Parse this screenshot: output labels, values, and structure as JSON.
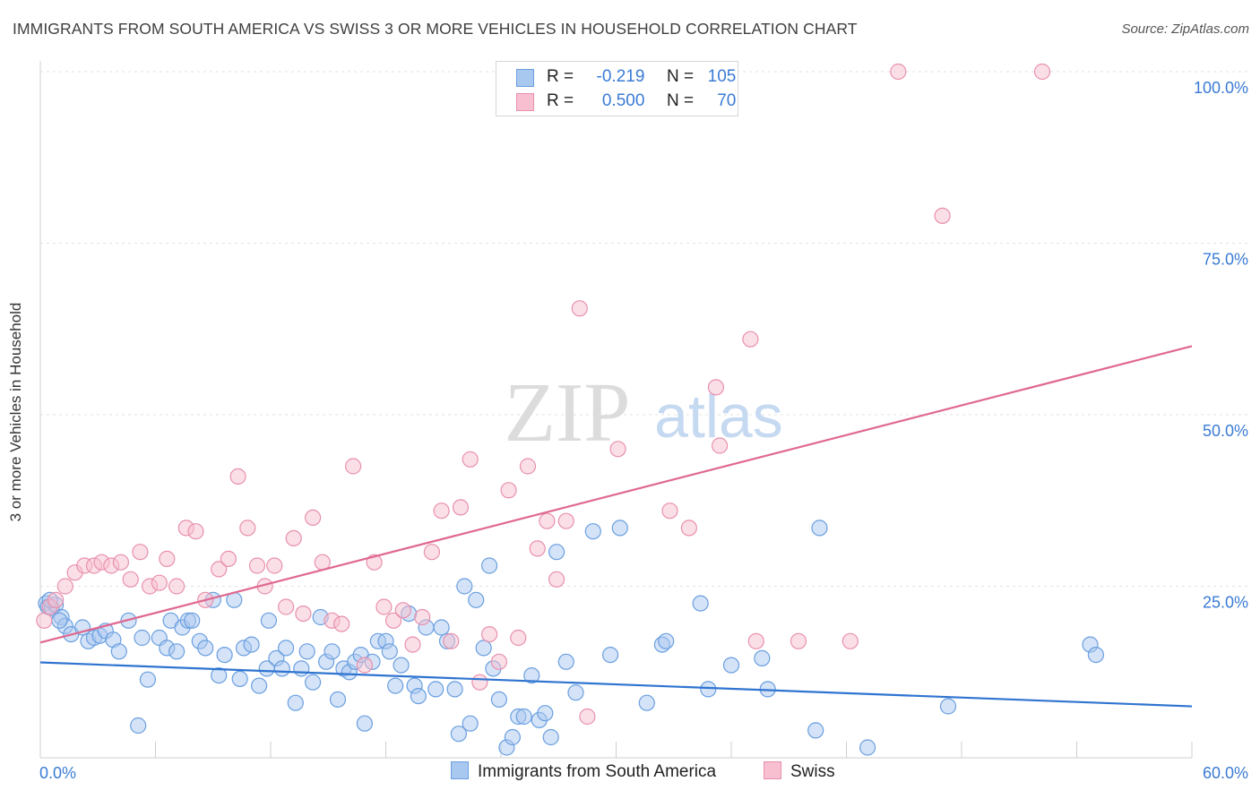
{
  "title": "IMMIGRANTS FROM SOUTH AMERICA VS SWISS 3 OR MORE VEHICLES IN HOUSEHOLD CORRELATION CHART",
  "source": "Source: ZipAtlas.com",
  "watermark": {
    "zip": "ZIP",
    "atlas": "atlas"
  },
  "legend": {
    "rows": [
      {
        "r_label": "R =",
        "r_value": "-0.219",
        "n_label": "N =",
        "n_value": "105",
        "color": "#a9c8f0",
        "border": "#6a9fe0"
      },
      {
        "r_label": "R =",
        "r_value": "0.500",
        "n_label": "N =",
        "n_value": "70",
        "color": "#f7bfd0",
        "border": "#e890ad"
      }
    ]
  },
  "bottom_legend": [
    {
      "label": "Immigrants from South America",
      "color": "#a9c8f0",
      "border": "#6a9fe0"
    },
    {
      "label": "Swiss",
      "color": "#f7bfd0",
      "border": "#e890ad"
    }
  ],
  "chart_data": {
    "type": "scatter",
    "title": "IMMIGRANTS FROM SOUTH AMERICA VS SWISS 3 OR MORE VEHICLES IN HOUSEHOLD CORRELATION CHART",
    "xlabel": "",
    "ylabel": "3 or more Vehicles in Household",
    "xlim": [
      0,
      60
    ],
    "ylim": [
      0,
      100
    ],
    "x_tick_labels": [
      "0.0%",
      "60.0%"
    ],
    "y_ticks": [
      25,
      50,
      75,
      100
    ],
    "y_tick_labels": [
      "25.0%",
      "50.0%",
      "75.0%",
      "100.0%"
    ],
    "series": [
      {
        "name": "Immigrants from South America",
        "color": "#6a9fe0",
        "fill": "#a9c8f0",
        "trend_color": "#2f74d0",
        "trend": {
          "x": [
            0,
            60
          ],
          "y": [
            13.9,
            7.5
          ]
        },
        "points": [
          [
            0.3,
            22.5
          ],
          [
            0.4,
            22.0
          ],
          [
            0.6,
            21.8
          ],
          [
            0.8,
            22.3
          ],
          [
            1.1,
            20.5
          ],
          [
            1.3,
            19.2
          ],
          [
            1.6,
            18.0
          ],
          [
            2.2,
            19.0
          ],
          [
            2.5,
            17.0
          ],
          [
            2.8,
            17.5
          ],
          [
            3.1,
            17.8
          ],
          [
            3.4,
            18.5
          ],
          [
            3.8,
            17.2
          ],
          [
            4.1,
            15.5
          ],
          [
            4.6,
            20.0
          ],
          [
            5.1,
            4.7
          ],
          [
            5.3,
            17.5
          ],
          [
            5.6,
            11.4
          ],
          [
            6.2,
            17.5
          ],
          [
            6.6,
            16.0
          ],
          [
            6.8,
            20.0
          ],
          [
            7.1,
            15.5
          ],
          [
            7.4,
            19.0
          ],
          [
            7.7,
            20.0
          ],
          [
            7.9,
            20.0
          ],
          [
            8.3,
            17.0
          ],
          [
            8.6,
            16.0
          ],
          [
            9.0,
            23.0
          ],
          [
            9.3,
            12.0
          ],
          [
            9.6,
            15.0
          ],
          [
            10.1,
            23.0
          ],
          [
            10.4,
            11.5
          ],
          [
            10.6,
            16.0
          ],
          [
            11.0,
            16.5
          ],
          [
            11.4,
            10.5
          ],
          [
            11.8,
            13.0
          ],
          [
            11.9,
            20.0
          ],
          [
            12.3,
            14.5
          ],
          [
            12.6,
            13.0
          ],
          [
            12.8,
            16.0
          ],
          [
            13.3,
            8.0
          ],
          [
            13.6,
            13.0
          ],
          [
            13.9,
            15.5
          ],
          [
            14.2,
            11.0
          ],
          [
            14.6,
            20.5
          ],
          [
            14.9,
            14.0
          ],
          [
            15.2,
            15.5
          ],
          [
            15.5,
            8.5
          ],
          [
            15.8,
            13.0
          ],
          [
            16.1,
            12.5
          ],
          [
            16.4,
            14.0
          ],
          [
            16.7,
            15.0
          ],
          [
            16.9,
            5.0
          ],
          [
            17.3,
            14.0
          ],
          [
            17.6,
            17.0
          ],
          [
            18.0,
            17.0
          ],
          [
            18.2,
            15.5
          ],
          [
            18.5,
            10.5
          ],
          [
            18.8,
            13.5
          ],
          [
            19.2,
            21.0
          ],
          [
            19.5,
            10.5
          ],
          [
            19.7,
            9.0
          ],
          [
            20.1,
            19.0
          ],
          [
            20.6,
            10.0
          ],
          [
            20.9,
            19.0
          ],
          [
            21.2,
            17.0
          ],
          [
            21.6,
            10.0
          ],
          [
            21.8,
            3.5
          ],
          [
            22.1,
            25.0
          ],
          [
            22.4,
            5.0
          ],
          [
            22.7,
            23.0
          ],
          [
            23.1,
            16.0
          ],
          [
            23.4,
            28.0
          ],
          [
            23.6,
            13.0
          ],
          [
            23.9,
            8.5
          ],
          [
            24.3,
            1.5
          ],
          [
            24.6,
            3.0
          ],
          [
            24.9,
            6.0
          ],
          [
            25.2,
            6.0
          ],
          [
            25.6,
            12.0
          ],
          [
            26.0,
            5.5
          ],
          [
            26.3,
            6.5
          ],
          [
            26.6,
            3.0
          ],
          [
            26.9,
            30.0
          ],
          [
            27.4,
            14.0
          ],
          [
            27.9,
            9.5
          ],
          [
            28.8,
            33.0
          ],
          [
            29.7,
            15.0
          ],
          [
            30.2,
            33.5
          ],
          [
            31.6,
            8.0
          ],
          [
            32.4,
            16.5
          ],
          [
            32.6,
            17.0
          ],
          [
            34.4,
            22.5
          ],
          [
            34.8,
            10.0
          ],
          [
            36.0,
            13.5
          ],
          [
            37.6,
            14.5
          ],
          [
            37.9,
            10.0
          ],
          [
            40.4,
            4.0
          ],
          [
            40.6,
            33.5
          ],
          [
            43.1,
            1.5
          ],
          [
            47.3,
            7.5
          ],
          [
            54.7,
            16.5
          ],
          [
            55.0,
            15.0
          ],
          [
            0.5,
            23.0
          ],
          [
            1.0,
            20.0
          ]
        ]
      },
      {
        "name": "Swiss",
        "color": "#e890ad",
        "fill": "#f7bfd0",
        "trend_color": "#e06890",
        "trend": {
          "x": [
            0,
            60
          ],
          "y": [
            16.8,
            60.0
          ]
        },
        "points": [
          [
            0.2,
            20.0
          ],
          [
            0.5,
            22.0
          ],
          [
            0.8,
            23.0
          ],
          [
            1.3,
            25.0
          ],
          [
            1.8,
            27.0
          ],
          [
            2.3,
            28.0
          ],
          [
            2.8,
            28.0
          ],
          [
            3.2,
            28.5
          ],
          [
            3.7,
            28.0
          ],
          [
            4.2,
            28.5
          ],
          [
            4.7,
            26.0
          ],
          [
            5.2,
            30.0
          ],
          [
            5.7,
            25.0
          ],
          [
            6.2,
            25.5
          ],
          [
            6.6,
            29.0
          ],
          [
            7.1,
            25.0
          ],
          [
            7.6,
            33.5
          ],
          [
            8.1,
            33.0
          ],
          [
            8.6,
            23.0
          ],
          [
            9.3,
            27.5
          ],
          [
            9.8,
            29.0
          ],
          [
            10.3,
            41.0
          ],
          [
            10.8,
            33.5
          ],
          [
            11.3,
            28.0
          ],
          [
            11.7,
            25.0
          ],
          [
            12.2,
            28.0
          ],
          [
            12.8,
            22.0
          ],
          [
            13.2,
            32.0
          ],
          [
            13.7,
            21.0
          ],
          [
            14.2,
            35.0
          ],
          [
            14.7,
            28.5
          ],
          [
            15.2,
            20.0
          ],
          [
            15.7,
            19.5
          ],
          [
            16.3,
            42.5
          ],
          [
            16.9,
            13.5
          ],
          [
            17.4,
            28.5
          ],
          [
            17.9,
            22.0
          ],
          [
            18.4,
            20.0
          ],
          [
            18.9,
            21.5
          ],
          [
            19.4,
            16.5
          ],
          [
            19.9,
            20.5
          ],
          [
            20.4,
            30.0
          ],
          [
            20.9,
            36.0
          ],
          [
            21.4,
            17.0
          ],
          [
            21.9,
            36.5
          ],
          [
            22.4,
            43.5
          ],
          [
            22.9,
            11.0
          ],
          [
            23.4,
            18.0
          ],
          [
            23.9,
            14.0
          ],
          [
            24.4,
            39.0
          ],
          [
            24.9,
            17.5
          ],
          [
            25.4,
            42.5
          ],
          [
            25.9,
            30.5
          ],
          [
            26.4,
            34.5
          ],
          [
            26.9,
            26.0
          ],
          [
            27.4,
            34.5
          ],
          [
            28.1,
            65.5
          ],
          [
            28.5,
            6.0
          ],
          [
            30.1,
            45.0
          ],
          [
            32.8,
            36.0
          ],
          [
            33.8,
            33.5
          ],
          [
            35.2,
            54.0
          ],
          [
            35.4,
            45.5
          ],
          [
            37.0,
            61.0
          ],
          [
            37.3,
            17.0
          ],
          [
            39.5,
            17.0
          ],
          [
            42.2,
            17.0
          ],
          [
            44.7,
            100.0
          ],
          [
            47.0,
            79.0
          ],
          [
            52.2,
            100.0
          ]
        ]
      }
    ]
  }
}
